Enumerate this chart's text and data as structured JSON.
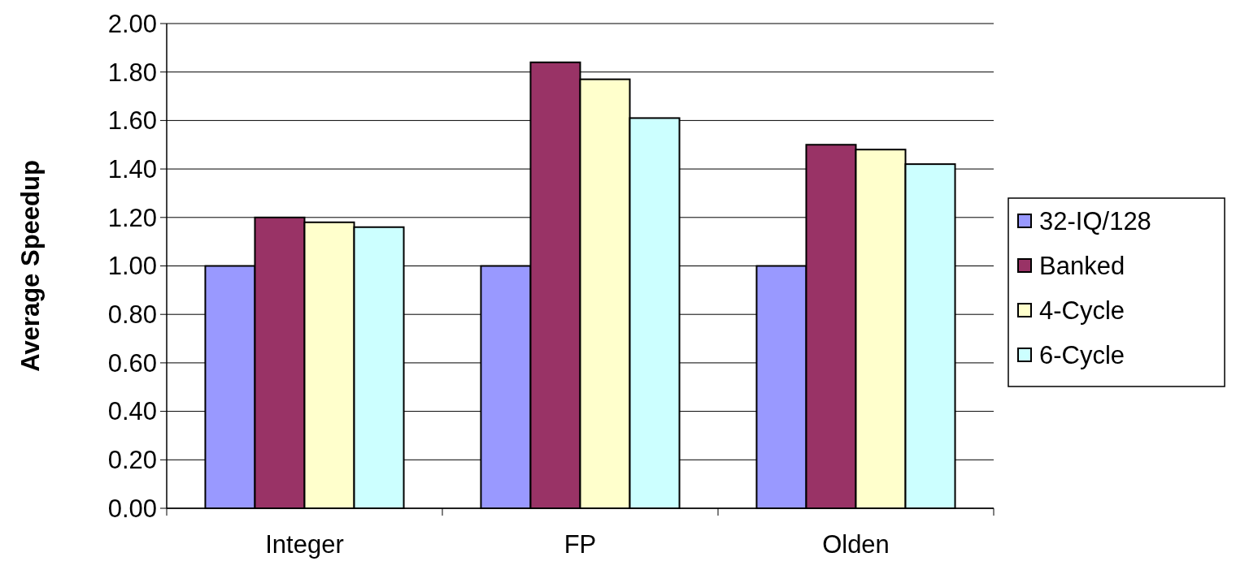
{
  "chart_data": {
    "type": "bar",
    "ylabel": "Average Speedup",
    "categories": [
      "Integer",
      "FP",
      "Olden"
    ],
    "series": [
      {
        "name": "32-IQ/128",
        "color": "#9999ff",
        "values": [
          1.0,
          1.0,
          1.0
        ]
      },
      {
        "name": "Banked",
        "color": "#993366",
        "values": [
          1.2,
          1.84,
          1.5
        ]
      },
      {
        "name": "4-Cycle",
        "color": "#ffffcc",
        "values": [
          1.18,
          1.77,
          1.48
        ]
      },
      {
        "name": "6-Cycle",
        "color": "#ccffff",
        "values": [
          1.16,
          1.61,
          1.42
        ]
      }
    ],
    "ylim": [
      0,
      2
    ],
    "yticks": [
      {
        "value": 0,
        "label": "0.00"
      },
      {
        "value": 0.2,
        "label": "0.20"
      },
      {
        "value": 0.4,
        "label": "0.40"
      },
      {
        "value": 0.6,
        "label": "0.60"
      },
      {
        "value": 0.8,
        "label": "0.80"
      },
      {
        "value": 1,
        "label": "1.00"
      },
      {
        "value": 1.2,
        "label": "1.20"
      },
      {
        "value": 1.4,
        "label": "1.40"
      },
      {
        "value": 1.6,
        "label": "1.60"
      },
      {
        "value": 1.8,
        "label": "1.80"
      },
      {
        "value": 2,
        "label": "2.00"
      }
    ],
    "grid": "y",
    "legend": "right"
  }
}
